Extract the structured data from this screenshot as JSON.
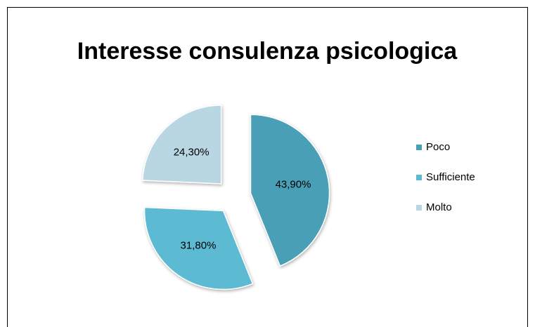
{
  "chart_data": {
    "type": "pie",
    "title": "Interesse consulenza psicologica",
    "categories": [
      "Poco",
      "Sufficiente",
      "Molto"
    ],
    "values": [
      43.9,
      31.8,
      24.3
    ],
    "value_labels": [
      "43,90%",
      "31,80%",
      "24,30%"
    ],
    "colors": [
      "#4a9fb5",
      "#5bbad3",
      "#b8d7e3"
    ],
    "legend": "right"
  }
}
